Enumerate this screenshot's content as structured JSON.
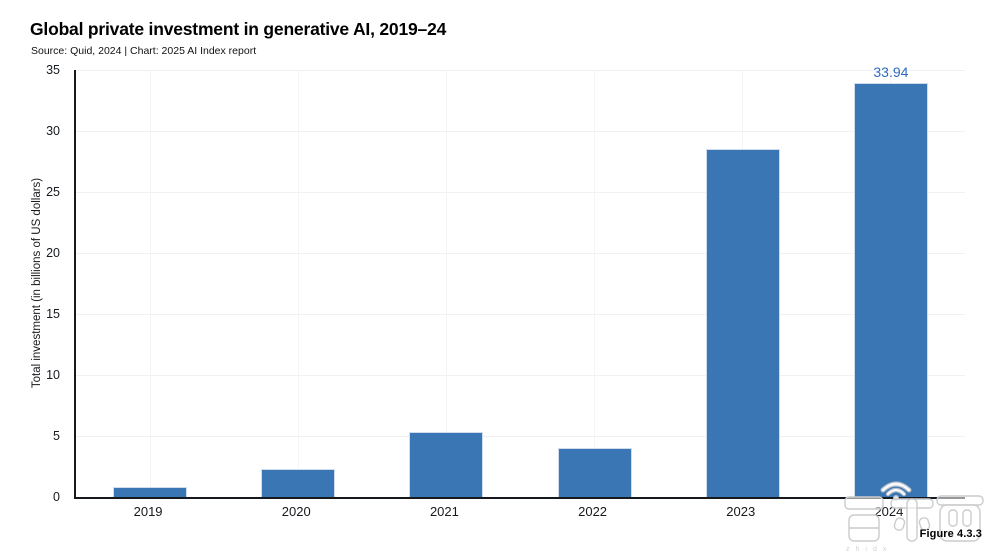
{
  "header": {
    "source_line": "Source: Quid, 2024 | Chart: 2025 AI Index report"
  },
  "figure_label": "Figure 4.3.3",
  "watermark": {
    "text": "智东西",
    "subtext": "zhidx"
  },
  "chart_data": {
    "type": "bar",
    "title": "Global private investment in generative AI, 2019–24",
    "categories": [
      "2019",
      "2020",
      "2021",
      "2022",
      "2023",
      "2024"
    ],
    "values": [
      0.8,
      2.3,
      5.3,
      4.0,
      28.5,
      33.94
    ],
    "bar_labels": [
      "",
      "",
      "",
      "",
      "",
      "33.94"
    ],
    "xlabel": "",
    "ylabel": "Total investment (in billions of US dollars)",
    "ylim": [
      0,
      35
    ],
    "yticks": [
      0,
      5,
      10,
      15,
      20,
      25,
      30,
      35
    ],
    "grid": true,
    "legend": false,
    "bar_color": "#3b76b4",
    "bar_border_color": "#cfdcee",
    "value_label_color": "#2e6cc0",
    "axis_color": "#16191d",
    "grid_color": "#eff1f3"
  }
}
